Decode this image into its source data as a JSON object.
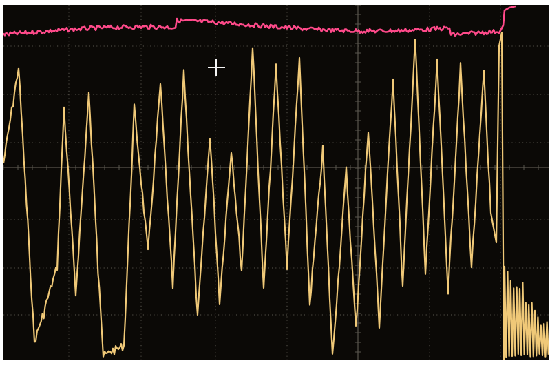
{
  "scope": {
    "background_color": "#0b0906",
    "grid_color": "#5a564e",
    "channel_1": {
      "name": "channel-1-trace",
      "color": "#f0c978"
    },
    "channel_2": {
      "name": "channel-2-trace",
      "color": "#ff4a8a"
    }
  },
  "status_bar": {
    "readouts": [
      "",
      "",
      "",
      "",
      ""
    ]
  }
}
